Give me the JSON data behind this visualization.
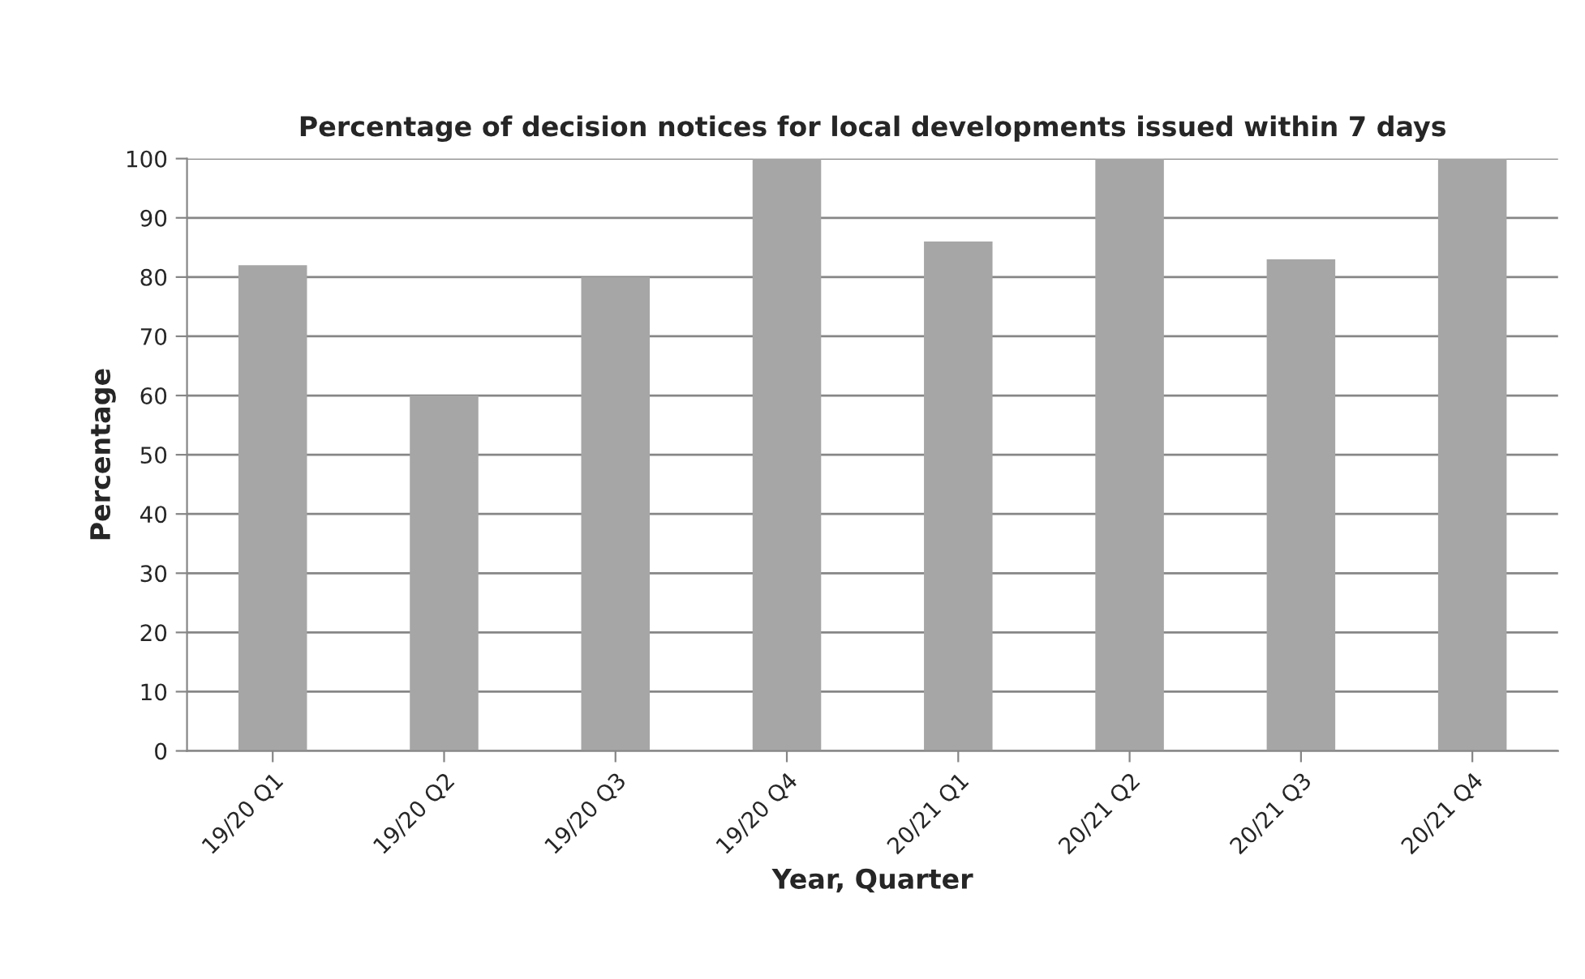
{
  "chart_data": {
    "type": "bar",
    "title": "Percentage of decision notices for local developments issued within 7 days",
    "xlabel": "Year, Quarter",
    "ylabel": "Percentage",
    "categories": [
      "19/20 Q1",
      "19/20 Q2",
      "19/20 Q3",
      "19/20 Q4",
      "20/21 Q1",
      "20/21 Q2",
      "20/21 Q3",
      "20/21 Q4"
    ],
    "values": [
      82,
      60,
      80,
      100,
      86,
      100,
      83,
      100
    ],
    "color": "#a6a6a6",
    "ylim": [
      0,
      100
    ],
    "yticks": [
      0,
      10,
      20,
      30,
      40,
      50,
      60,
      70,
      80,
      90,
      100
    ],
    "grid": "y",
    "legend": false
  }
}
